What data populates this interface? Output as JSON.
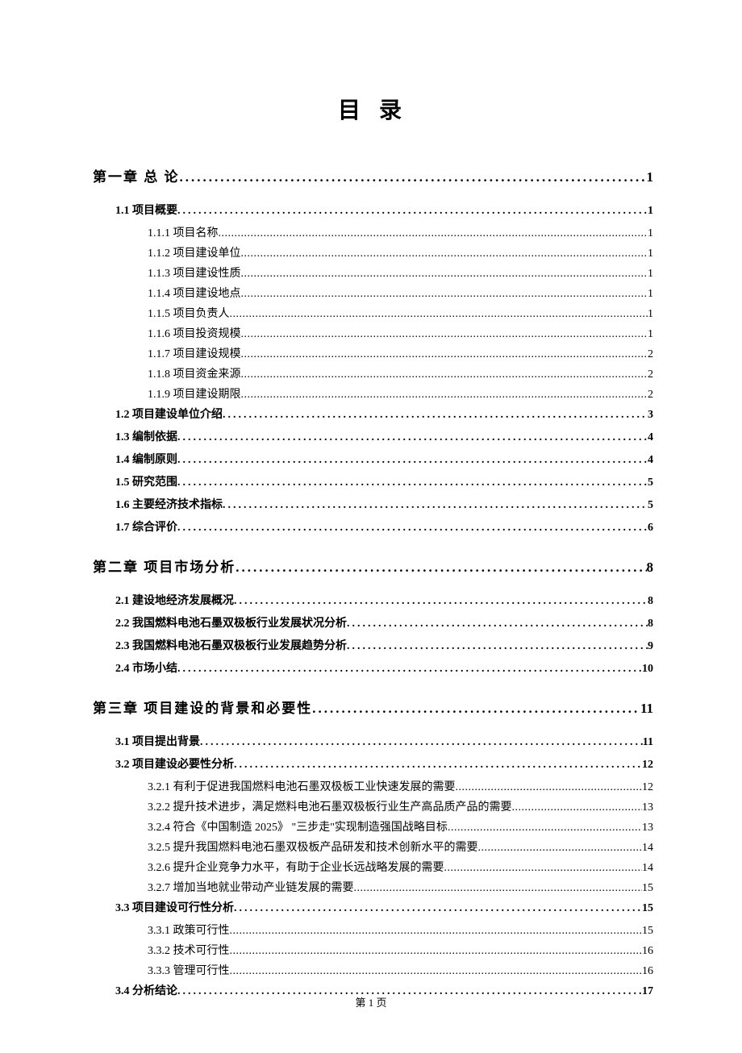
{
  "title": "目 录",
  "footer": "第 1 页",
  "toc": [
    {
      "level": 1,
      "label": "第一章 总 论",
      "page": "1"
    },
    {
      "level": 2,
      "label": "1.1 项目概要",
      "page": "1"
    },
    {
      "level": 3,
      "label": "1.1.1 项目名称",
      "page": "1"
    },
    {
      "level": 3,
      "label": "1.1.2 项目建设单位",
      "page": "1"
    },
    {
      "level": 3,
      "label": "1.1.3 项目建设性质",
      "page": "1"
    },
    {
      "level": 3,
      "label": "1.1.4 项目建设地点",
      "page": "1"
    },
    {
      "level": 3,
      "label": "1.1.5 项目负责人",
      "page": "1"
    },
    {
      "level": 3,
      "label": "1.1.6 项目投资规模",
      "page": "1"
    },
    {
      "level": 3,
      "label": "1.1.7 项目建设规模",
      "page": "2"
    },
    {
      "level": 3,
      "label": "1.1.8 项目资金来源",
      "page": "2"
    },
    {
      "level": 3,
      "label": "1.1.9 项目建设期限",
      "page": "2"
    },
    {
      "level": 2,
      "label": "1.2 项目建设单位介绍",
      "page": "3"
    },
    {
      "level": 2,
      "label": "1.3 编制依据",
      "page": "4"
    },
    {
      "level": 2,
      "label": "1.4 编制原则",
      "page": "4"
    },
    {
      "level": 2,
      "label": "1.5 研究范围",
      "page": "5"
    },
    {
      "level": 2,
      "label": "1.6 主要经济技术指标",
      "page": "5"
    },
    {
      "level": 2,
      "label": "1.7 综合评价",
      "page": "6"
    },
    {
      "level": 1,
      "label": "第二章 项目市场分析",
      "page": "8"
    },
    {
      "level": 2,
      "label": "2.1 建设地经济发展概况",
      "page": "8"
    },
    {
      "level": 2,
      "label": "2.2 我国燃料电池石墨双极板行业发展状况分析",
      "page": "8"
    },
    {
      "level": 2,
      "label": "2.3 我国燃料电池石墨双极板行业发展趋势分析",
      "page": "9"
    },
    {
      "level": 2,
      "label": "2.4 市场小结",
      "page": "10"
    },
    {
      "level": 1,
      "label": "第三章 项目建设的背景和必要性",
      "page": "11"
    },
    {
      "level": 2,
      "label": "3.1 项目提出背景",
      "page": "11"
    },
    {
      "level": 2,
      "label": "3.2 项目建设必要性分析",
      "page": "12"
    },
    {
      "level": 3,
      "label": "3.2.1 有利于促进我国燃料电池石墨双极板工业快速发展的需要",
      "page": "12"
    },
    {
      "level": 3,
      "label": "3.2.2 提升技术进步，满足燃料电池石墨双极板行业生产高品质产品的需要",
      "page": "13"
    },
    {
      "level": 3,
      "label": "3.2.4 符合《中国制造 2025》 \"三步走\"实现制造强国战略目标",
      "page": "13"
    },
    {
      "level": 3,
      "label": "3.2.5 提升我国燃料电池石墨双极板产品研发和技术创新水平的需要",
      "page": "14"
    },
    {
      "level": 3,
      "label": "3.2.6 提升企业竞争力水平，有助于企业长远战略发展的需要",
      "page": "14"
    },
    {
      "level": 3,
      "label": "3.2.7 增加当地就业带动产业链发展的需要",
      "page": "15"
    },
    {
      "level": 2,
      "label": "3.3 项目建设可行性分析",
      "page": "15"
    },
    {
      "level": 3,
      "label": "3.3.1 政策可行性",
      "page": "15"
    },
    {
      "level": 3,
      "label": "3.3.2 技术可行性",
      "page": "16"
    },
    {
      "level": 3,
      "label": "3.3.3 管理可行性",
      "page": "16"
    },
    {
      "level": 2,
      "label": "3.4 分析结论",
      "page": "17"
    }
  ]
}
